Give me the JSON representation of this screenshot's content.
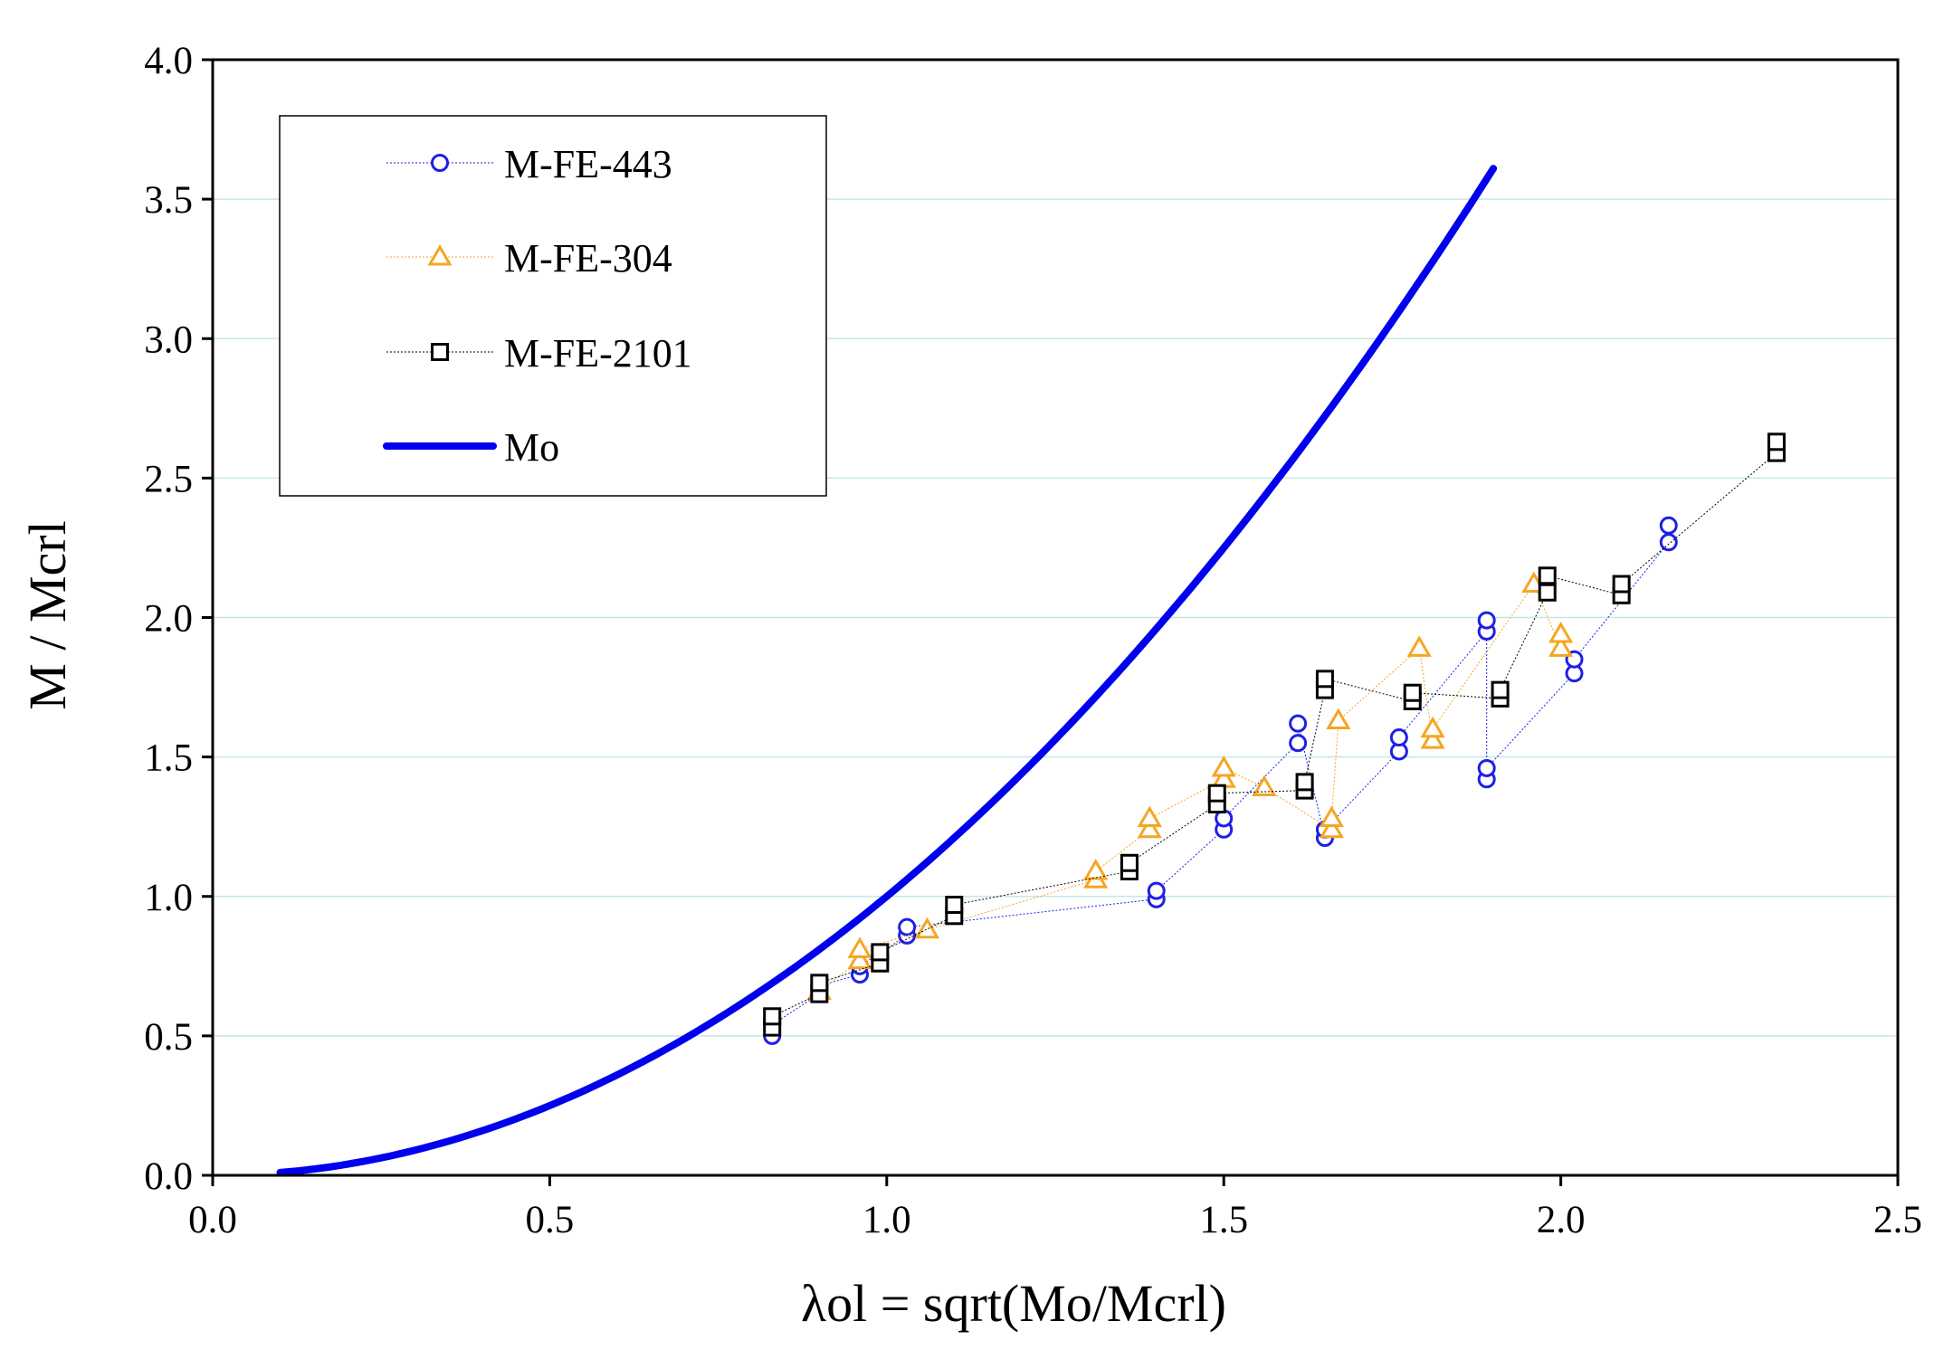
{
  "chart_data": {
    "type": "scatter",
    "title": "",
    "xlabel": "λol = sqrt(Mo/Mcrl)",
    "ylabel": "M / Mcrl",
    "xlim": [
      0.0,
      2.5
    ],
    "ylim": [
      0.0,
      4.0
    ],
    "xticks": [
      "0.0",
      "0.5",
      "1.0",
      "1.5",
      "2.0",
      "2.5"
    ],
    "yticks": [
      "0.0",
      "0.5",
      "1.0",
      "1.5",
      "2.0",
      "2.5",
      "3.0",
      "3.5",
      "4.0"
    ],
    "grid": "horizontal",
    "legend_position": "top-left",
    "series": [
      {
        "name": "M-FE-443",
        "marker": "circle",
        "color": "#1f1fe6",
        "points": [
          [
            0.83,
            0.5
          ],
          [
            0.83,
            0.54
          ],
          [
            0.9,
            0.65
          ],
          [
            0.9,
            0.68
          ],
          [
            0.96,
            0.72
          ],
          [
            0.96,
            0.75
          ],
          [
            1.03,
            0.86
          ],
          [
            1.03,
            0.89
          ],
          [
            1.4,
            0.99
          ],
          [
            1.4,
            1.02
          ],
          [
            1.5,
            1.24
          ],
          [
            1.5,
            1.28
          ],
          [
            1.61,
            1.55
          ],
          [
            1.61,
            1.62
          ],
          [
            1.65,
            1.21
          ],
          [
            1.65,
            1.24
          ],
          [
            1.76,
            1.52
          ],
          [
            1.76,
            1.57
          ],
          [
            1.89,
            1.95
          ],
          [
            1.89,
            1.99
          ],
          [
            1.89,
            1.42
          ],
          [
            1.89,
            1.46
          ],
          [
            2.02,
            1.8
          ],
          [
            2.02,
            1.85
          ],
          [
            2.16,
            2.27
          ],
          [
            2.16,
            2.33
          ]
        ]
      },
      {
        "name": "M-FE-304",
        "marker": "triangle",
        "color": "#f5a623",
        "points": [
          [
            0.9,
            0.66
          ],
          [
            0.96,
            0.77
          ],
          [
            0.96,
            0.81
          ],
          [
            1.06,
            0.88
          ],
          [
            1.31,
            1.06
          ],
          [
            1.31,
            1.09
          ],
          [
            1.39,
            1.24
          ],
          [
            1.39,
            1.28
          ],
          [
            1.5,
            1.42
          ],
          [
            1.5,
            1.46
          ],
          [
            1.56,
            1.39
          ],
          [
            1.66,
            1.24
          ],
          [
            1.66,
            1.28
          ],
          [
            1.67,
            1.63
          ],
          [
            1.79,
            1.89
          ],
          [
            1.81,
            1.56
          ],
          [
            1.81,
            1.6
          ],
          [
            1.96,
            2.12
          ],
          [
            2.0,
            1.89
          ],
          [
            2.0,
            1.94
          ]
        ]
      },
      {
        "name": "M-FE-2101",
        "marker": "square",
        "color": "#000000",
        "points": [
          [
            0.83,
            0.53
          ],
          [
            0.83,
            0.57
          ],
          [
            0.9,
            0.65
          ],
          [
            0.9,
            0.69
          ],
          [
            0.99,
            0.76
          ],
          [
            0.99,
            0.8
          ],
          [
            1.1,
            0.93
          ],
          [
            1.1,
            0.97
          ],
          [
            1.36,
            1.09
          ],
          [
            1.36,
            1.12
          ],
          [
            1.49,
            1.33
          ],
          [
            1.49,
            1.37
          ],
          [
            1.62,
            1.38
          ],
          [
            1.62,
            1.41
          ],
          [
            1.65,
            1.74
          ],
          [
            1.65,
            1.78
          ],
          [
            1.78,
            1.7
          ],
          [
            1.78,
            1.73
          ],
          [
            1.91,
            1.71
          ],
          [
            1.91,
            1.74
          ],
          [
            1.98,
            2.09
          ],
          [
            1.98,
            2.15
          ],
          [
            2.09,
            2.08
          ],
          [
            2.09,
            2.12
          ],
          [
            2.32,
            2.59
          ],
          [
            2.32,
            2.63
          ]
        ]
      },
      {
        "name": "Mo",
        "marker": "none",
        "color": "#0000ee",
        "curve": "y = x^2",
        "x_range": [
          0.1,
          1.9
        ],
        "end_points": [
          [
            0.1,
            0.01
          ],
          [
            1.9,
            3.61
          ]
        ]
      }
    ]
  }
}
